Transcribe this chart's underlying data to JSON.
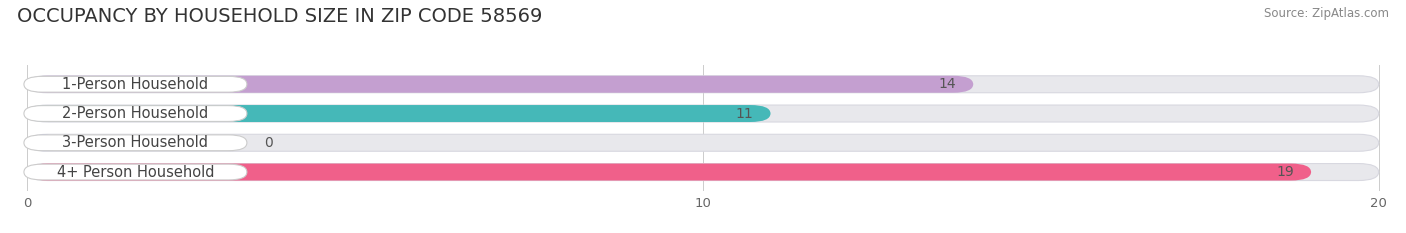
{
  "title": "OCCUPANCY BY HOUSEHOLD SIZE IN ZIP CODE 58569",
  "source": "Source: ZipAtlas.com",
  "categories": [
    "1-Person Household",
    "2-Person Household",
    "3-Person Household",
    "4+ Person Household"
  ],
  "values": [
    14,
    11,
    0,
    19
  ],
  "bar_colors": [
    "#c49fd0",
    "#45b8b8",
    "#b0b8e8",
    "#f0608a"
  ],
  "xlim": [
    0,
    20
  ],
  "xticks": [
    0,
    10,
    20
  ],
  "bar_height": 0.58,
  "background_color": "#ffffff",
  "track_color": "#e8e8ec",
  "label_bg_color": "#ffffff",
  "title_fontsize": 14,
  "label_fontsize": 10.5,
  "value_fontsize": 10,
  "track_edge_color": "#d8d8e0"
}
